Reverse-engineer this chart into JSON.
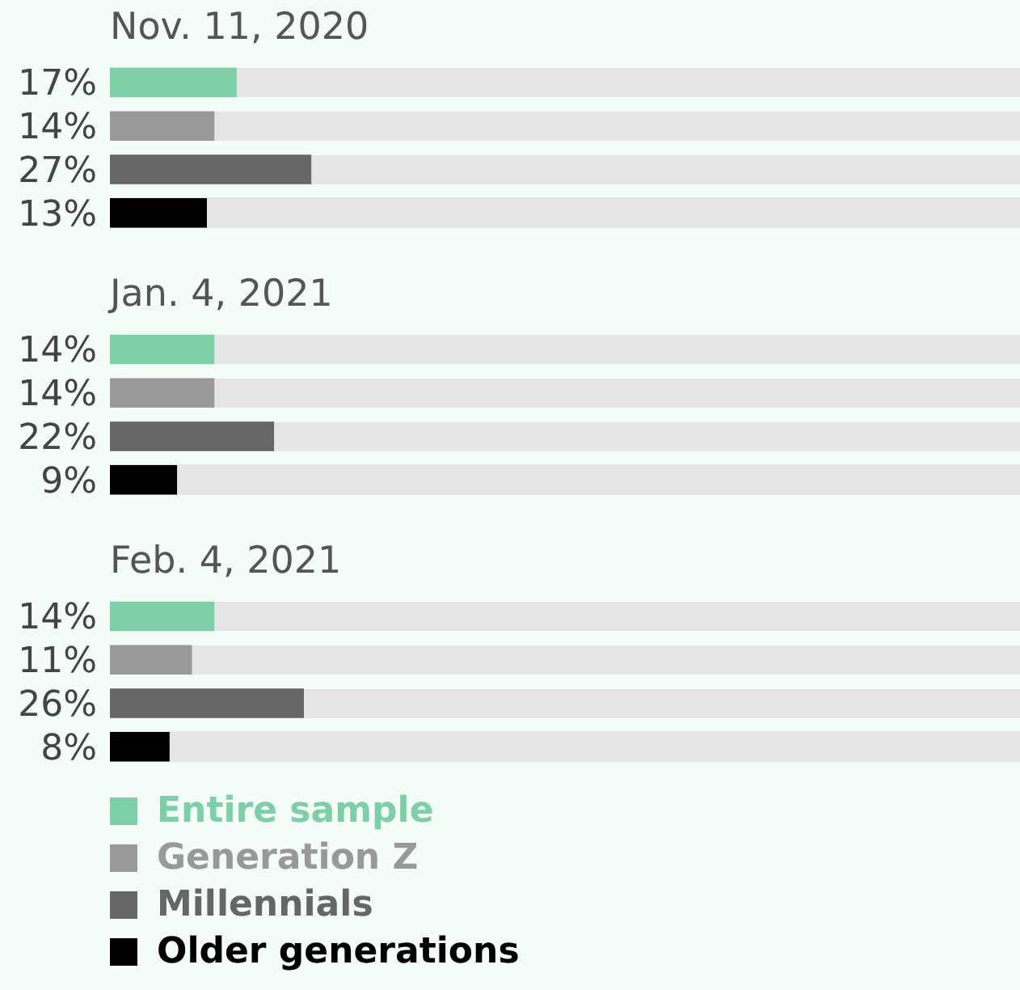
{
  "chart_data": [
    {
      "type": "bar",
      "orientation": "horizontal",
      "title": "Nov. 11, 2020",
      "categories": [
        null,
        null,
        null,
        null
      ],
      "xlim": [
        0,
        122
      ],
      "tick_labels": false,
      "values": [
        17,
        14,
        27,
        13
      ],
      "colors": [
        "#7dcfa8",
        "#999999",
        "#666666",
        "#000000"
      ],
      "value_labels": [
        "17%",
        "14%",
        "27%",
        "13%"
      ]
    },
    {
      "type": "bar",
      "orientation": "horizontal",
      "title": "Jan. 4, 2021",
      "categories": [
        null,
        null,
        null,
        null
      ],
      "xlim": [
        0,
        122
      ],
      "tick_labels": false,
      "values": [
        14,
        14,
        22,
        9
      ],
      "colors": [
        "#7dcfa8",
        "#999999",
        "#666666",
        "#000000"
      ],
      "value_labels": [
        "14%",
        "14%",
        "22%",
        "9%"
      ]
    },
    {
      "type": "bar",
      "orientation": "horizontal",
      "title": "Feb. 4, 2021",
      "categories": [
        null,
        null,
        null,
        null
      ],
      "xlim": [
        0,
        122
      ],
      "tick_labels": false,
      "values": [
        14,
        11,
        26,
        8
      ],
      "colors": [
        "#7dcfa8",
        "#999999",
        "#666666",
        "#000000"
      ],
      "value_labels": [
        "14%",
        "11%",
        "26%",
        "8%"
      ]
    },
    {
      "type": "other",
      "categories": [
        "Entire sample",
        "Generation Z",
        "Millennials",
        "Older generations"
      ],
      "colors": [
        "#7dcfa8",
        "#999999",
        "#666666",
        "#000000"
      ]
    }
  ]
}
